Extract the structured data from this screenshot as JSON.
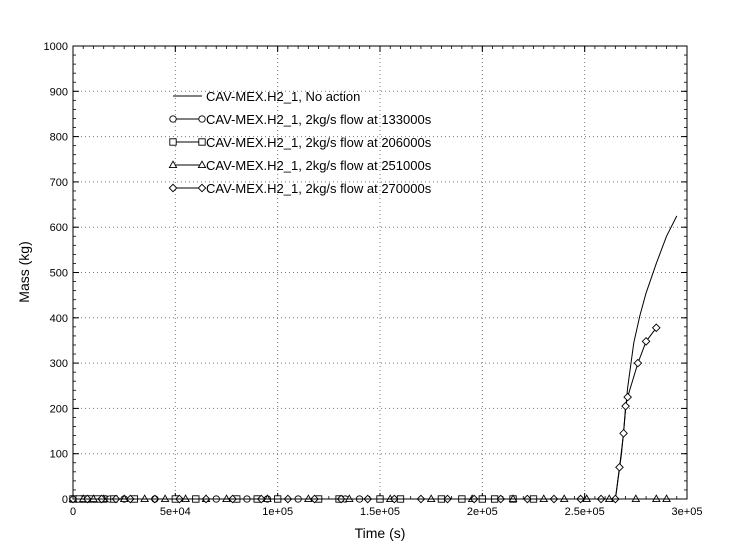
{
  "chart_data": {
    "type": "line",
    "xlabel": "Time (s)",
    "ylabel": "Mass (kg)",
    "xlim": [
      0,
      300000
    ],
    "ylim": [
      0,
      1000
    ],
    "x_ticks": [
      {
        "value": 0,
        "label": "0"
      },
      {
        "value": 50000,
        "label": "5e+04"
      },
      {
        "value": 100000,
        "label": "1e+05"
      },
      {
        "value": 150000,
        "label": "1.5e+05"
      },
      {
        "value": 200000,
        "label": "2e+05"
      },
      {
        "value": 250000,
        "label": "2.5e+05"
      },
      {
        "value": 300000,
        "label": "3e+05"
      }
    ],
    "y_ticks": [
      {
        "value": 0,
        "label": "0"
      },
      {
        "value": 100,
        "label": "100"
      },
      {
        "value": 200,
        "label": "200"
      },
      {
        "value": 300,
        "label": "300"
      },
      {
        "value": 400,
        "label": "400"
      },
      {
        "value": 500,
        "label": "500"
      },
      {
        "value": 600,
        "label": "600"
      },
      {
        "value": 700,
        "label": "700"
      },
      {
        "value": 800,
        "label": "800"
      },
      {
        "value": 900,
        "label": "900"
      },
      {
        "value": 1000,
        "label": "1000"
      }
    ],
    "grid": true,
    "legend_position": "top-left",
    "series": [
      {
        "name": "CAV-MEX.H2_1, No action",
        "marker": "none",
        "x": [
          0,
          100000,
          200000,
          265000,
          268000,
          271000,
          274000,
          277000,
          280000,
          285000,
          290000,
          295000
        ],
        "y": [
          0,
          0,
          0,
          0,
          100,
          245,
          345,
          405,
          455,
          520,
          580,
          625
        ]
      },
      {
        "name": "CAV-MEX.H2_1, 2kg/s flow at 133000s",
        "marker": "circle",
        "x": [
          0,
          2000,
          4000,
          6000,
          8000,
          10000,
          12000,
          14000,
          16000,
          18000,
          20000,
          25000,
          30000,
          40000,
          50000,
          60000,
          70000,
          80000,
          85000,
          90000,
          95000,
          100000,
          110000,
          120000,
          130000,
          133000,
          140000,
          150000
        ],
        "y": [
          0,
          0,
          0,
          0,
          0,
          0,
          0,
          0,
          0,
          0,
          0,
          0,
          0,
          0,
          0,
          0,
          0,
          0,
          0,
          0,
          0,
          0,
          0,
          0,
          0,
          0,
          0,
          0
        ]
      },
      {
        "name": "CAV-MEX.H2_1, 2kg/s flow at 206000s",
        "marker": "square",
        "x": [
          0,
          3000,
          6000,
          9000,
          12000,
          15000,
          20000,
          30000,
          50000,
          60000,
          80000,
          90000,
          100000,
          120000,
          130000,
          150000,
          160000,
          180000,
          190000,
          200000,
          206000,
          215000,
          225000
        ],
        "y": [
          0,
          0,
          0,
          0,
          0,
          0,
          0,
          0,
          0,
          0,
          0,
          0,
          0,
          0,
          0,
          0,
          0,
          0,
          0,
          0,
          0,
          0,
          0
        ]
      },
      {
        "name": "CAV-MEX.H2_1, 2kg/s flow at 251000s",
        "marker": "triangle",
        "x": [
          0,
          5000,
          10000,
          15000,
          25000,
          35000,
          45000,
          55000,
          65000,
          75000,
          95000,
          115000,
          135000,
          155000,
          175000,
          195000,
          215000,
          230000,
          240000,
          251000,
          262000,
          275000,
          285000,
          290000
        ],
        "y": [
          0,
          0,
          0,
          0,
          0,
          0,
          0,
          0,
          0,
          0,
          0,
          0,
          0,
          0,
          0,
          0,
          0,
          0,
          0,
          0,
          0,
          0,
          0,
          0
        ]
      },
      {
        "name": "CAV-MEX.H2_1, 2kg/s flow at 270000s",
        "marker": "diamond",
        "x": [
          0,
          7000,
          14000,
          21000,
          28000,
          40000,
          52000,
          65000,
          78000,
          92000,
          105000,
          118000,
          131000,
          144000,
          157000,
          170000,
          183000,
          196000,
          209000,
          222000,
          235000,
          248000,
          258000,
          265000,
          267000,
          269000,
          270000,
          271000,
          276000,
          280000,
          285000
        ],
        "y": [
          0,
          0,
          0,
          0,
          0,
          0,
          0,
          0,
          0,
          0,
          0,
          0,
          0,
          0,
          0,
          0,
          0,
          0,
          0,
          0,
          0,
          0,
          0,
          0,
          70,
          145,
          205,
          225,
          300,
          348,
          378
        ]
      }
    ]
  }
}
